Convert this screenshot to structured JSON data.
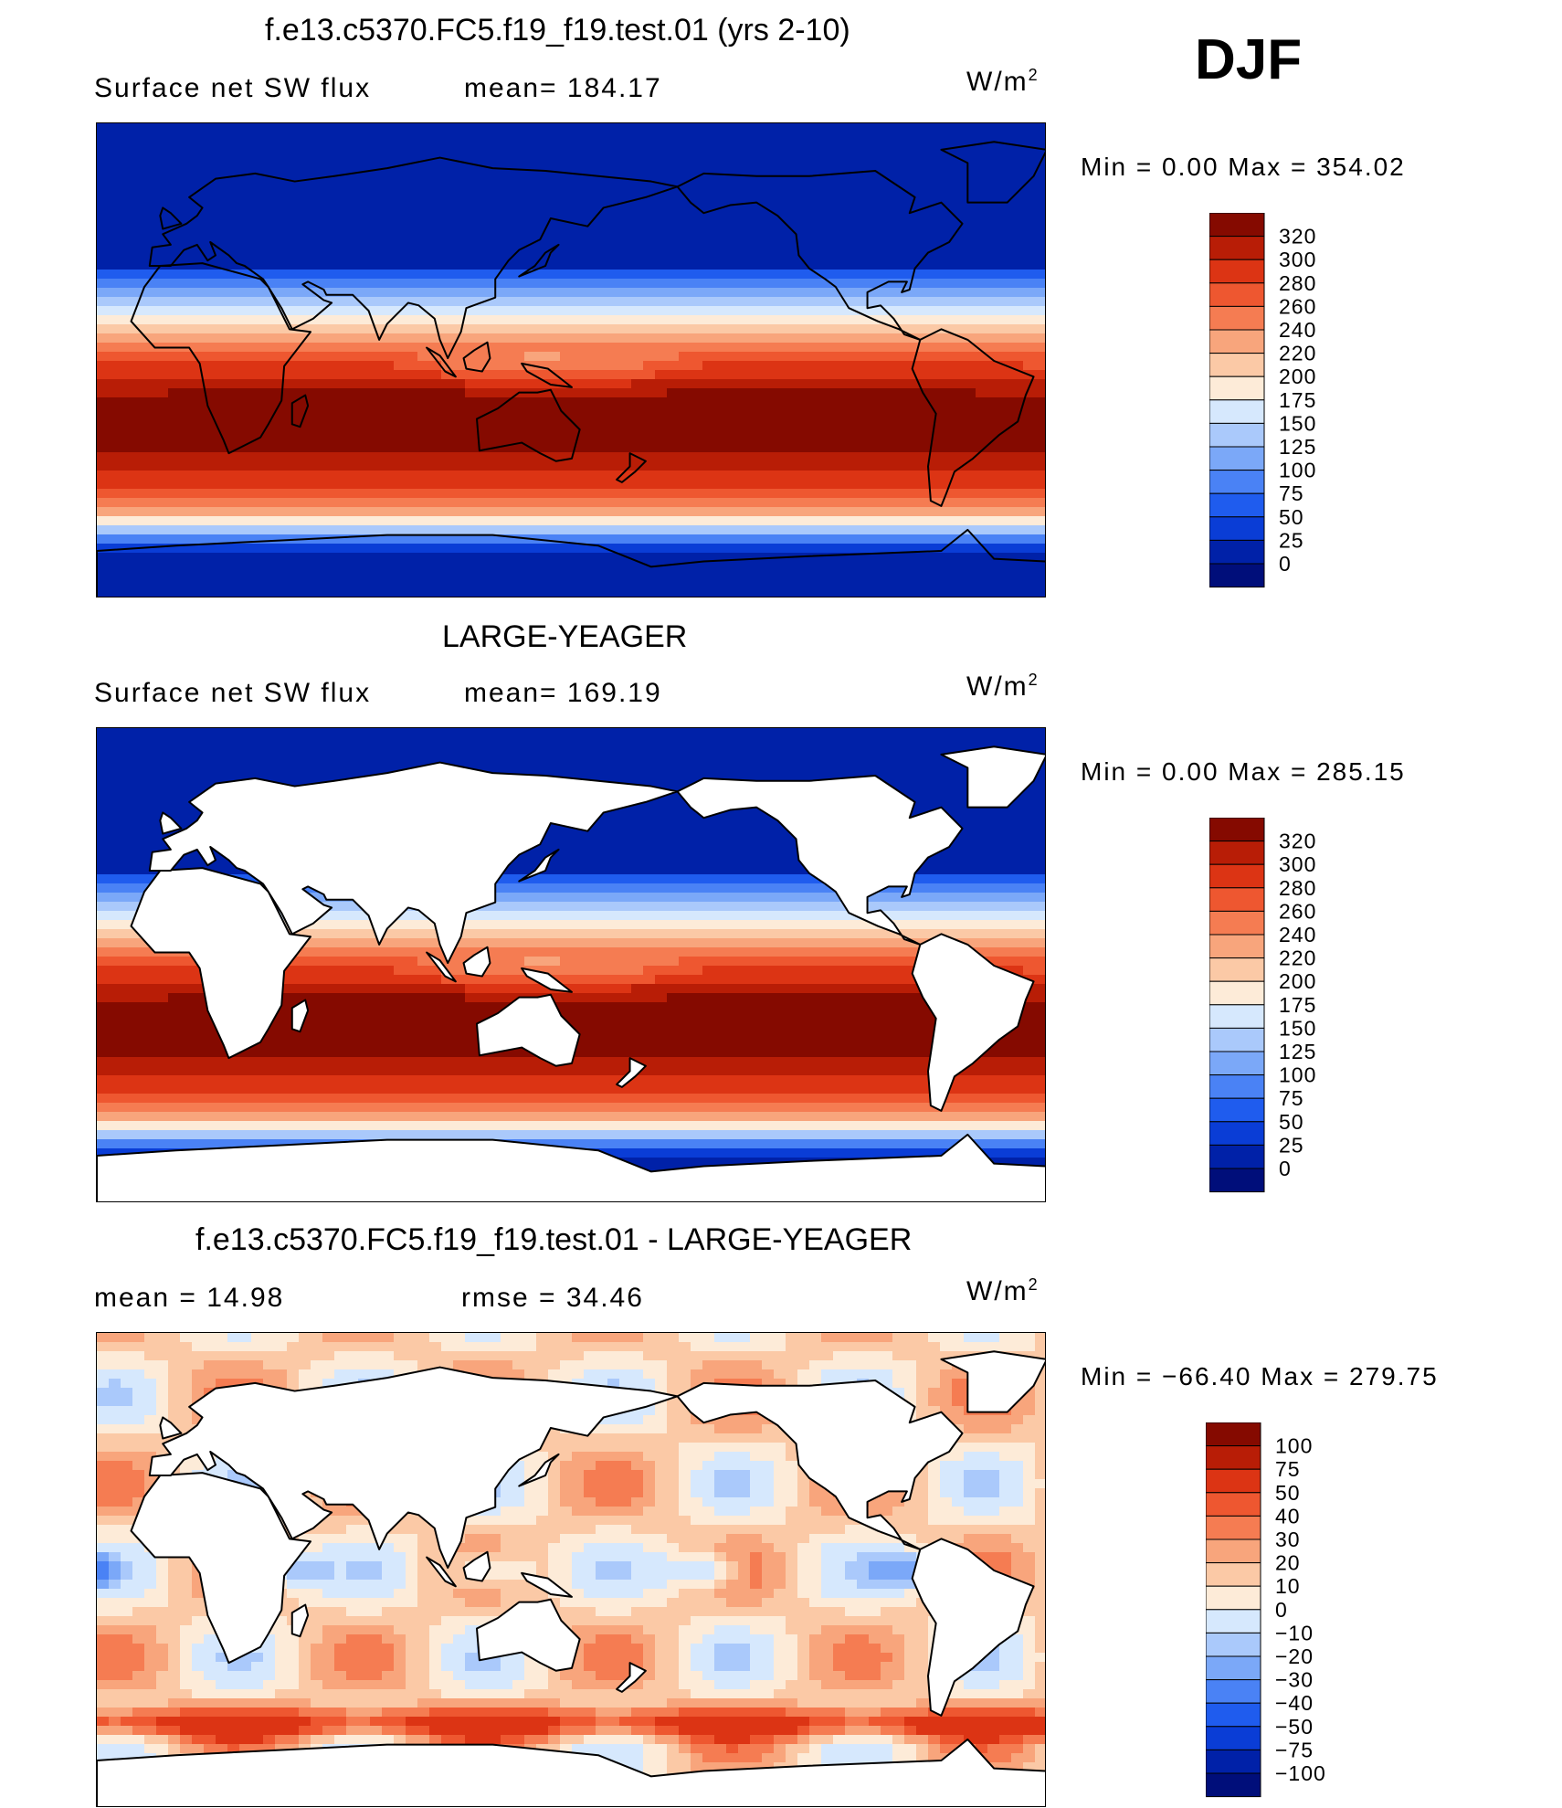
{
  "season": "DJF",
  "colors": {
    "abs_scale": [
      "#000e7a",
      "#0021a8",
      "#0a3dd6",
      "#1f5cee",
      "#4a82f5",
      "#7ba8f8",
      "#aac9fb",
      "#d6e8fd",
      "#fdebd8",
      "#fbc9a6",
      "#f8a57c",
      "#f57c52",
      "#ee5730",
      "#dc3414",
      "#b81d06",
      "#850a00"
    ],
    "diff_scale": [
      "#000e7a",
      "#0021a8",
      "#0a3dd6",
      "#1f5cee",
      "#4a82f5",
      "#7ba8f8",
      "#aac9fb",
      "#d6e8fd",
      "#fdebd8",
      "#fbc9a6",
      "#f8a57c",
      "#f57c52",
      "#ee5730",
      "#dc3414",
      "#b81d06",
      "#850a00"
    ],
    "land_fill": "#ffffff",
    "coast": "#000000"
  },
  "panels": [
    {
      "title": "f.e13.c5370.FC5.f19_f19.test.01 (yrs 2-10)",
      "left_label": "Surface net SW flux",
      "right_label": "mean=  184.17",
      "unit_base": "W/m",
      "unit_exp": "2",
      "minmax": "Min  =     0.00  Max  =  354.02",
      "land_masked": false,
      "field": "abs",
      "cb_labels": [
        "320",
        "300",
        "280",
        "260",
        "240",
        "220",
        "200",
        "175",
        "150",
        "125",
        "100",
        "75",
        "50",
        "25",
        "0"
      ]
    },
    {
      "title": "LARGE-YEAGER",
      "left_label": "Surface net SW flux",
      "right_label": "mean=  169.19",
      "unit_base": "W/m",
      "unit_exp": "2",
      "minmax": "Min  =     0.00  Max  =  285.15",
      "land_masked": true,
      "field": "abs",
      "cb_labels": [
        "320",
        "300",
        "280",
        "260",
        "240",
        "220",
        "200",
        "175",
        "150",
        "125",
        "100",
        "75",
        "50",
        "25",
        "0"
      ]
    },
    {
      "title": "f.e13.c5370.FC5.f19_f19.test.01 - LARGE-YEAGER",
      "left_label": "mean  =     14.98",
      "right_label": "rmse  =     34.46",
      "unit_base": "W/m",
      "unit_exp": "2",
      "minmax": "Min  =  −66.40  Max  =  279.75",
      "land_masked": true,
      "field": "diff",
      "cb_labels": [
        "100",
        "75",
        "50",
        "40",
        "30",
        "20",
        "10",
        "0",
        "−10",
        "−20",
        "−30",
        "−40",
        "−50",
        "−75",
        "−100"
      ]
    }
  ]
}
